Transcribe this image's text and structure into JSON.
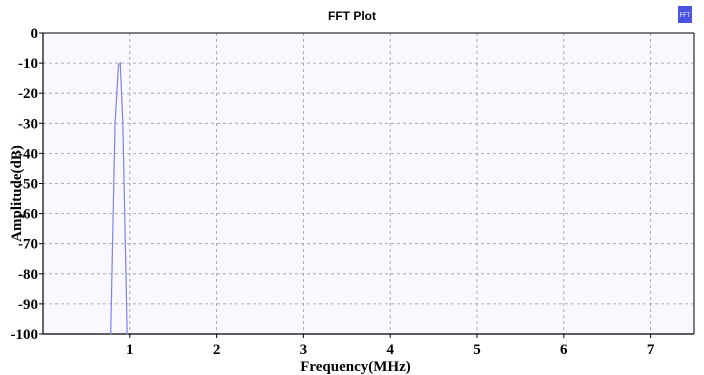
{
  "chart_data": {
    "type": "line",
    "title": "FFT Plot",
    "xlabel": "Frequency(MHz)",
    "ylabel": "Amplitude(dB)",
    "xlim": [
      0,
      7.5
    ],
    "ylim": [
      -100,
      0
    ],
    "x_ticks": [
      1,
      2,
      3,
      4,
      5,
      6,
      7
    ],
    "y_ticks": [
      0,
      -10,
      -20,
      -30,
      -40,
      -50,
      -60,
      -70,
      -80,
      -90,
      -100
    ],
    "grid": true,
    "legend": {
      "label": "FFT",
      "placement": "top-right"
    },
    "series": [
      {
        "name": "FFT",
        "color": "#7b86e8",
        "x": [
          0.78,
          0.83,
          0.87,
          0.89,
          0.92,
          0.97
        ],
        "y": [
          -100,
          -30,
          -10.5,
          -10,
          -30,
          -100
        ]
      }
    ],
    "colors": {
      "plot_background": "#f9f7ff",
      "grid": "#9a9a9a",
      "legend_swatch": "#4a54e0"
    }
  }
}
